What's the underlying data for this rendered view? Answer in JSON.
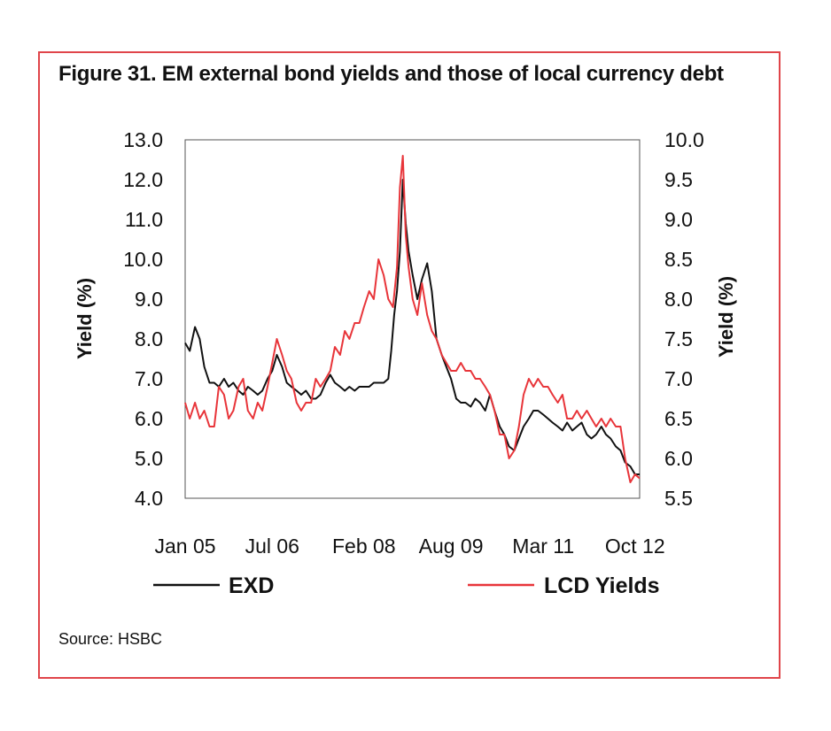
{
  "figure": {
    "title": "Figure 31.  EM external bond yields and those of local currency debt",
    "source": "Source: HSBC",
    "border_color": "#e0454a"
  },
  "chart_data": {
    "type": "line",
    "left_axis": {
      "label": "Yield (%)",
      "range": [
        4.0,
        13.0
      ],
      "ticks": [
        "13.0",
        "12.0",
        "11.0",
        "10.0",
        "9.0",
        "8.0",
        "7.0",
        "6.0",
        "5.0",
        "4.0"
      ]
    },
    "right_axis": {
      "label": "Yield (%)",
      "range": [
        5.5,
        10.0
      ],
      "ticks": [
        "10.0",
        "9.5",
        "9.0",
        "8.5",
        "8.0",
        "7.5",
        "7.0",
        "6.5",
        "6.0",
        "5.5"
      ]
    },
    "x_range": [
      2005.0,
      2012.83
    ],
    "x_ticks": [
      {
        "label": "Jan 05",
        "x": 2005.0
      },
      {
        "label": "Jul 06",
        "x": 2006.5
      },
      {
        "label": "Feb 08",
        "x": 2008.08
      },
      {
        "label": "Aug 09",
        "x": 2009.58
      },
      {
        "label": "Mar 11",
        "x": 2011.17
      },
      {
        "label": "Oct 12",
        "x": 2012.75
      }
    ],
    "grid": false,
    "legend_position": "bottom",
    "series": [
      {
        "name": "EXD",
        "axis": "left",
        "color": "#111111",
        "points": [
          [
            2005.0,
            7.9
          ],
          [
            2005.08,
            7.7
          ],
          [
            2005.17,
            8.3
          ],
          [
            2005.25,
            8.0
          ],
          [
            2005.33,
            7.3
          ],
          [
            2005.42,
            6.9
          ],
          [
            2005.5,
            6.9
          ],
          [
            2005.58,
            6.8
          ],
          [
            2005.67,
            7.0
          ],
          [
            2005.75,
            6.8
          ],
          [
            2005.83,
            6.9
          ],
          [
            2005.92,
            6.7
          ],
          [
            2006.0,
            6.6
          ],
          [
            2006.08,
            6.8
          ],
          [
            2006.17,
            6.7
          ],
          [
            2006.25,
            6.6
          ],
          [
            2006.33,
            6.7
          ],
          [
            2006.42,
            7.0
          ],
          [
            2006.5,
            7.2
          ],
          [
            2006.58,
            7.6
          ],
          [
            2006.67,
            7.3
          ],
          [
            2006.75,
            6.9
          ],
          [
            2006.83,
            6.8
          ],
          [
            2006.92,
            6.7
          ],
          [
            2007.0,
            6.6
          ],
          [
            2007.08,
            6.7
          ],
          [
            2007.17,
            6.5
          ],
          [
            2007.25,
            6.5
          ],
          [
            2007.33,
            6.6
          ],
          [
            2007.42,
            6.9
          ],
          [
            2007.5,
            7.1
          ],
          [
            2007.58,
            6.9
          ],
          [
            2007.67,
            6.8
          ],
          [
            2007.75,
            6.7
          ],
          [
            2007.83,
            6.8
          ],
          [
            2007.92,
            6.7
          ],
          [
            2008.0,
            6.8
          ],
          [
            2008.08,
            6.8
          ],
          [
            2008.17,
            6.8
          ],
          [
            2008.25,
            6.9
          ],
          [
            2008.33,
            6.9
          ],
          [
            2008.42,
            6.9
          ],
          [
            2008.5,
            7.0
          ],
          [
            2008.55,
            7.7
          ],
          [
            2008.6,
            8.6
          ],
          [
            2008.65,
            9.2
          ],
          [
            2008.7,
            10.2
          ],
          [
            2008.75,
            12.0
          ],
          [
            2008.8,
            10.9
          ],
          [
            2008.85,
            10.2
          ],
          [
            2008.92,
            9.6
          ],
          [
            2009.0,
            9.0
          ],
          [
            2009.08,
            9.5
          ],
          [
            2009.17,
            9.9
          ],
          [
            2009.25,
            9.2
          ],
          [
            2009.33,
            8.0
          ],
          [
            2009.42,
            7.6
          ],
          [
            2009.5,
            7.3
          ],
          [
            2009.58,
            7.0
          ],
          [
            2009.67,
            6.5
          ],
          [
            2009.75,
            6.4
          ],
          [
            2009.83,
            6.4
          ],
          [
            2009.92,
            6.3
          ],
          [
            2010.0,
            6.5
          ],
          [
            2010.08,
            6.4
          ],
          [
            2010.17,
            6.2
          ],
          [
            2010.25,
            6.6
          ],
          [
            2010.33,
            6.2
          ],
          [
            2010.42,
            5.8
          ],
          [
            2010.5,
            5.6
          ],
          [
            2010.58,
            5.3
          ],
          [
            2010.67,
            5.2
          ],
          [
            2010.75,
            5.5
          ],
          [
            2010.83,
            5.8
          ],
          [
            2010.92,
            6.0
          ],
          [
            2011.0,
            6.2
          ],
          [
            2011.08,
            6.2
          ],
          [
            2011.17,
            6.1
          ],
          [
            2011.25,
            6.0
          ],
          [
            2011.33,
            5.9
          ],
          [
            2011.42,
            5.8
          ],
          [
            2011.5,
            5.7
          ],
          [
            2011.58,
            5.9
          ],
          [
            2011.67,
            5.7
          ],
          [
            2011.75,
            5.8
          ],
          [
            2011.83,
            5.9
          ],
          [
            2011.92,
            5.6
          ],
          [
            2012.0,
            5.5
          ],
          [
            2012.08,
            5.6
          ],
          [
            2012.17,
            5.8
          ],
          [
            2012.25,
            5.6
          ],
          [
            2012.33,
            5.5
          ],
          [
            2012.42,
            5.3
          ],
          [
            2012.5,
            5.2
          ],
          [
            2012.58,
            4.9
          ],
          [
            2012.67,
            4.8
          ],
          [
            2012.75,
            4.6
          ],
          [
            2012.83,
            4.6
          ]
        ]
      },
      {
        "name": "LCD Yields",
        "axis": "right",
        "color": "#e8353a",
        "points": [
          [
            2005.0,
            6.7
          ],
          [
            2005.08,
            6.5
          ],
          [
            2005.17,
            6.7
          ],
          [
            2005.25,
            6.5
          ],
          [
            2005.33,
            6.6
          ],
          [
            2005.42,
            6.4
          ],
          [
            2005.5,
            6.4
          ],
          [
            2005.58,
            6.9
          ],
          [
            2005.67,
            6.8
          ],
          [
            2005.75,
            6.5
          ],
          [
            2005.83,
            6.6
          ],
          [
            2005.92,
            6.9
          ],
          [
            2006.0,
            7.0
          ],
          [
            2006.08,
            6.6
          ],
          [
            2006.17,
            6.5
          ],
          [
            2006.25,
            6.7
          ],
          [
            2006.33,
            6.6
          ],
          [
            2006.42,
            6.9
          ],
          [
            2006.5,
            7.2
          ],
          [
            2006.58,
            7.5
          ],
          [
            2006.67,
            7.3
          ],
          [
            2006.75,
            7.1
          ],
          [
            2006.83,
            7.0
          ],
          [
            2006.92,
            6.7
          ],
          [
            2007.0,
            6.6
          ],
          [
            2007.08,
            6.7
          ],
          [
            2007.17,
            6.7
          ],
          [
            2007.25,
            7.0
          ],
          [
            2007.33,
            6.9
          ],
          [
            2007.42,
            7.0
          ],
          [
            2007.5,
            7.1
          ],
          [
            2007.58,
            7.4
          ],
          [
            2007.67,
            7.3
          ],
          [
            2007.75,
            7.6
          ],
          [
            2007.83,
            7.5
          ],
          [
            2007.92,
            7.7
          ],
          [
            2008.0,
            7.7
          ],
          [
            2008.08,
            7.9
          ],
          [
            2008.17,
            8.1
          ],
          [
            2008.25,
            8.0
          ],
          [
            2008.33,
            8.5
          ],
          [
            2008.42,
            8.3
          ],
          [
            2008.5,
            8.0
          ],
          [
            2008.58,
            7.9
          ],
          [
            2008.65,
            8.4
          ],
          [
            2008.7,
            9.4
          ],
          [
            2008.75,
            9.8
          ],
          [
            2008.8,
            8.8
          ],
          [
            2008.85,
            8.4
          ],
          [
            2008.92,
            8.0
          ],
          [
            2009.0,
            7.8
          ],
          [
            2009.08,
            8.2
          ],
          [
            2009.17,
            7.8
          ],
          [
            2009.25,
            7.6
          ],
          [
            2009.33,
            7.5
          ],
          [
            2009.42,
            7.3
          ],
          [
            2009.5,
            7.2
          ],
          [
            2009.58,
            7.1
          ],
          [
            2009.67,
            7.1
          ],
          [
            2009.75,
            7.2
          ],
          [
            2009.83,
            7.1
          ],
          [
            2009.92,
            7.1
          ],
          [
            2010.0,
            7.0
          ],
          [
            2010.08,
            7.0
          ],
          [
            2010.17,
            6.9
          ],
          [
            2010.25,
            6.8
          ],
          [
            2010.33,
            6.6
          ],
          [
            2010.42,
            6.3
          ],
          [
            2010.5,
            6.3
          ],
          [
            2010.58,
            6.0
          ],
          [
            2010.67,
            6.1
          ],
          [
            2010.75,
            6.4
          ],
          [
            2010.83,
            6.8
          ],
          [
            2010.92,
            7.0
          ],
          [
            2011.0,
            6.9
          ],
          [
            2011.08,
            7.0
          ],
          [
            2011.17,
            6.9
          ],
          [
            2011.25,
            6.9
          ],
          [
            2011.33,
            6.8
          ],
          [
            2011.42,
            6.7
          ],
          [
            2011.5,
            6.8
          ],
          [
            2011.58,
            6.5
          ],
          [
            2011.67,
            6.5
          ],
          [
            2011.75,
            6.6
          ],
          [
            2011.83,
            6.5
          ],
          [
            2011.92,
            6.6
          ],
          [
            2012.0,
            6.5
          ],
          [
            2012.08,
            6.4
          ],
          [
            2012.17,
            6.5
          ],
          [
            2012.25,
            6.4
          ],
          [
            2012.33,
            6.5
          ],
          [
            2012.42,
            6.4
          ],
          [
            2012.5,
            6.4
          ],
          [
            2012.58,
            6.0
          ],
          [
            2012.67,
            5.7
          ],
          [
            2012.75,
            5.8
          ],
          [
            2012.83,
            5.75
          ]
        ]
      }
    ]
  }
}
